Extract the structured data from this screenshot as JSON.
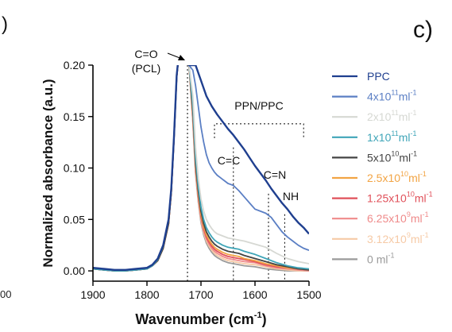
{
  "panel_label": "c)",
  "edge_fragments": {
    "top_left": ")",
    "bottom_left": "00"
  },
  "chart_data": {
    "type": "line",
    "xlabel": "Wavenumber (cm",
    "xlabel_sup": "-1",
    "xlabel_end": ")",
    "ylabel": "Normalized absorbance (a.u.)",
    "xlim": [
      1900,
      1500
    ],
    "ylim": [
      -0.01,
      0.2
    ],
    "x_ticks": [
      1900,
      1800,
      1700,
      1600,
      1500
    ],
    "x_tick_labels": [
      "1900",
      "1800",
      "1700",
      "1600",
      "1500"
    ],
    "y_ticks": [
      0.0,
      0.05,
      0.1,
      0.15,
      0.2
    ],
    "y_tick_labels": [
      "0.00",
      "0.05",
      "0.10",
      "0.15",
      "0.20"
    ],
    "grid": false,
    "legend_position": "right",
    "vlines": [
      1725,
      1640,
      1575,
      1545
    ],
    "annotations": [
      {
        "id": "co",
        "lines": [
          "C=O",
          "(PCL)"
        ]
      },
      {
        "id": "ppn",
        "lines": [
          "PPN/PPC"
        ]
      },
      {
        "id": "cc",
        "lines": [
          "C=C"
        ]
      },
      {
        "id": "cn",
        "lines": [
          "C=N"
        ]
      },
      {
        "id": "nh",
        "lines": [
          "NH"
        ]
      }
    ],
    "bracket": {
      "x_start": 1675,
      "x_end": 1510,
      "y": 0.143
    },
    "series": [
      {
        "name": "PPC",
        "base": "",
        "sup": "",
        "color": "#1f3f8f",
        "x": [
          1900,
          1880,
          1860,
          1840,
          1820,
          1800,
          1790,
          1780,
          1770,
          1760,
          1755,
          1750,
          1745,
          1742,
          1728,
          1722,
          1710,
          1700,
          1690,
          1680,
          1670,
          1660,
          1650,
          1640,
          1630,
          1620,
          1610,
          1600,
          1590,
          1580,
          1570,
          1560,
          1550,
          1540,
          1530,
          1520,
          1510,
          1500
        ],
        "y": [
          0.003,
          0.002,
          0.001,
          0.001,
          0.002,
          0.003,
          0.006,
          0.012,
          0.025,
          0.05,
          0.08,
          0.13,
          0.19,
          0.205,
          0.205,
          0.2,
          0.2,
          0.185,
          0.17,
          0.16,
          0.152,
          0.145,
          0.138,
          0.132,
          0.125,
          0.118,
          0.11,
          0.102,
          0.095,
          0.088,
          0.08,
          0.073,
          0.066,
          0.06,
          0.053,
          0.047,
          0.042,
          0.036
        ]
      },
      {
        "name": "4x10",
        "base": "4x10",
        "sup": "11",
        "unit": "ml",
        "unit_sup": "-1",
        "color": "#5b7fc4",
        "x": [
          1900,
          1880,
          1860,
          1840,
          1820,
          1800,
          1790,
          1780,
          1770,
          1760,
          1755,
          1750,
          1745,
          1742,
          1728,
          1722,
          1715,
          1710,
          1705,
          1700,
          1695,
          1690,
          1685,
          1680,
          1675,
          1670,
          1665,
          1660,
          1655,
          1650,
          1645,
          1640,
          1630,
          1620,
          1610,
          1600,
          1590,
          1580,
          1570,
          1560,
          1550,
          1540,
          1530,
          1520,
          1510,
          1500
        ],
        "y": [
          0.003,
          0.002,
          0.001,
          0.001,
          0.002,
          0.003,
          0.006,
          0.012,
          0.025,
          0.05,
          0.08,
          0.13,
          0.19,
          0.205,
          0.205,
          0.2,
          0.195,
          0.18,
          0.16,
          0.14,
          0.125,
          0.113,
          0.105,
          0.1,
          0.096,
          0.093,
          0.091,
          0.089,
          0.087,
          0.085,
          0.084,
          0.083,
          0.078,
          0.072,
          0.066,
          0.06,
          0.058,
          0.056,
          0.052,
          0.045,
          0.038,
          0.033,
          0.029,
          0.025,
          0.022,
          0.02
        ]
      },
      {
        "name": "2x10",
        "base": "2x10",
        "sup": "11",
        "unit": "ml",
        "unit_sup": "-1",
        "color": "#d6d8d3",
        "x": [
          1900,
          1880,
          1860,
          1840,
          1820,
          1800,
          1790,
          1780,
          1770,
          1760,
          1755,
          1750,
          1745,
          1742,
          1728,
          1722,
          1715,
          1710,
          1705,
          1700,
          1695,
          1690,
          1685,
          1680,
          1675,
          1670,
          1660,
          1650,
          1640,
          1630,
          1620,
          1600,
          1580,
          1560,
          1540,
          1520,
          1500
        ],
        "y": [
          0.003,
          0.002,
          0.001,
          0.001,
          0.002,
          0.003,
          0.006,
          0.012,
          0.025,
          0.05,
          0.08,
          0.13,
          0.19,
          0.205,
          0.205,
          0.2,
          0.17,
          0.12,
          0.09,
          0.07,
          0.058,
          0.05,
          0.045,
          0.041,
          0.038,
          0.036,
          0.034,
          0.032,
          0.031,
          0.03,
          0.029,
          0.026,
          0.023,
          0.017,
          0.012,
          0.009,
          0.007
        ]
      },
      {
        "name": "1x10",
        "base": "1x10",
        "sup": "11",
        "unit": "ml",
        "unit_sup": "-1",
        "color": "#3fa5b8",
        "x": [
          1900,
          1880,
          1860,
          1840,
          1820,
          1800,
          1790,
          1780,
          1770,
          1760,
          1755,
          1750,
          1745,
          1742,
          1728,
          1722,
          1715,
          1710,
          1705,
          1700,
          1695,
          1690,
          1685,
          1680,
          1675,
          1670,
          1660,
          1650,
          1640,
          1630,
          1620,
          1600,
          1580,
          1560,
          1540,
          1520,
          1500
        ],
        "y": [
          0.002,
          0.001,
          0.0,
          0.0,
          0.001,
          0.002,
          0.005,
          0.011,
          0.024,
          0.049,
          0.079,
          0.13,
          0.19,
          0.205,
          0.205,
          0.2,
          0.16,
          0.11,
          0.082,
          0.062,
          0.05,
          0.042,
          0.037,
          0.033,
          0.03,
          0.028,
          0.025,
          0.023,
          0.022,
          0.021,
          0.019,
          0.016,
          0.012,
          0.008,
          0.005,
          0.003,
          0.002
        ]
      },
      {
        "name": "5x10",
        "base": "5x10",
        "sup": "10",
        "unit": "ml",
        "unit_sup": "-1",
        "color": "#444444",
        "x": [
          1900,
          1880,
          1860,
          1840,
          1820,
          1800,
          1790,
          1780,
          1770,
          1760,
          1755,
          1750,
          1745,
          1742,
          1728,
          1722,
          1715,
          1710,
          1705,
          1700,
          1695,
          1690,
          1685,
          1680,
          1675,
          1670,
          1660,
          1650,
          1640,
          1630,
          1620,
          1600,
          1580,
          1560,
          1540,
          1520,
          1500
        ],
        "y": [
          0.002,
          0.001,
          0.0,
          0.0,
          0.001,
          0.002,
          0.005,
          0.01,
          0.022,
          0.046,
          0.076,
          0.128,
          0.188,
          0.204,
          0.204,
          0.2,
          0.155,
          0.105,
          0.078,
          0.058,
          0.046,
          0.038,
          0.033,
          0.029,
          0.026,
          0.024,
          0.021,
          0.019,
          0.018,
          0.017,
          0.015,
          0.012,
          0.009,
          0.006,
          0.004,
          0.002,
          0.001
        ]
      },
      {
        "name": "2.5x10",
        "base": "2.5x10",
        "sup": "10",
        "unit": "ml",
        "unit_sup": "-1",
        "color": "#f2a444",
        "x": [
          1900,
          1880,
          1860,
          1840,
          1820,
          1800,
          1790,
          1780,
          1770,
          1760,
          1755,
          1750,
          1745,
          1742,
          1728,
          1722,
          1715,
          1710,
          1705,
          1700,
          1695,
          1690,
          1685,
          1680,
          1675,
          1670,
          1660,
          1650,
          1640,
          1630,
          1620,
          1600,
          1580,
          1560,
          1540,
          1520,
          1500
        ],
        "y": [
          0.002,
          0.001,
          0.0,
          0.0,
          0.001,
          0.002,
          0.005,
          0.01,
          0.022,
          0.046,
          0.076,
          0.128,
          0.188,
          0.204,
          0.204,
          0.2,
          0.152,
          0.102,
          0.075,
          0.055,
          0.043,
          0.035,
          0.03,
          0.026,
          0.023,
          0.021,
          0.018,
          0.016,
          0.015,
          0.014,
          0.012,
          0.01,
          0.007,
          0.005,
          0.003,
          0.002,
          0.001
        ]
      },
      {
        "name": "1.25x10",
        "base": "1.25x10",
        "sup": "10",
        "unit": "ml",
        "unit_sup": "-1",
        "color": "#e0505a",
        "x": [
          1900,
          1880,
          1860,
          1840,
          1820,
          1800,
          1790,
          1780,
          1770,
          1760,
          1755,
          1750,
          1745,
          1742,
          1728,
          1722,
          1715,
          1710,
          1705,
          1700,
          1695,
          1690,
          1685,
          1680,
          1675,
          1670,
          1660,
          1650,
          1640,
          1630,
          1620,
          1600,
          1580,
          1560,
          1540,
          1520,
          1500
        ],
        "y": [
          0.002,
          0.001,
          0.0,
          0.0,
          0.001,
          0.002,
          0.005,
          0.01,
          0.022,
          0.046,
          0.076,
          0.128,
          0.188,
          0.204,
          0.204,
          0.2,
          0.15,
          0.1,
          0.073,
          0.053,
          0.041,
          0.033,
          0.028,
          0.024,
          0.021,
          0.019,
          0.016,
          0.014,
          0.013,
          0.012,
          0.011,
          0.009,
          0.006,
          0.004,
          0.003,
          0.002,
          0.001
        ]
      },
      {
        "name": "6.25x10",
        "base": "6.25x10",
        "sup": "9",
        "unit": "ml",
        "unit_sup": "-1",
        "color": "#ef8a8a",
        "x": [
          1900,
          1880,
          1860,
          1840,
          1820,
          1800,
          1790,
          1780,
          1770,
          1760,
          1755,
          1750,
          1745,
          1742,
          1728,
          1722,
          1715,
          1710,
          1705,
          1700,
          1695,
          1690,
          1685,
          1680,
          1675,
          1670,
          1660,
          1650,
          1640,
          1630,
          1620,
          1600,
          1580,
          1560,
          1540,
          1520,
          1500
        ],
        "y": [
          0.002,
          0.001,
          0.0,
          0.0,
          0.001,
          0.002,
          0.005,
          0.01,
          0.022,
          0.046,
          0.076,
          0.128,
          0.188,
          0.204,
          0.204,
          0.2,
          0.148,
          0.098,
          0.071,
          0.051,
          0.039,
          0.031,
          0.026,
          0.022,
          0.019,
          0.017,
          0.014,
          0.012,
          0.011,
          0.01,
          0.009,
          0.008,
          0.005,
          0.003,
          0.002,
          0.001,
          0.0
        ]
      },
      {
        "name": "3.12x10",
        "base": "3.12x10",
        "sup": "9",
        "unit": "ml",
        "unit_sup": "-1",
        "color": "#f6caa6",
        "x": [
          1900,
          1880,
          1860,
          1840,
          1820,
          1800,
          1790,
          1780,
          1770,
          1760,
          1755,
          1750,
          1745,
          1742,
          1728,
          1722,
          1715,
          1710,
          1705,
          1700,
          1695,
          1690,
          1685,
          1680,
          1675,
          1670,
          1660,
          1650,
          1640,
          1630,
          1620,
          1600,
          1580,
          1560,
          1540,
          1520,
          1500
        ],
        "y": [
          0.002,
          0.001,
          0.0,
          0.0,
          0.001,
          0.002,
          0.005,
          0.01,
          0.022,
          0.046,
          0.076,
          0.128,
          0.188,
          0.204,
          0.204,
          0.2,
          0.146,
          0.096,
          0.069,
          0.049,
          0.037,
          0.029,
          0.024,
          0.02,
          0.017,
          0.015,
          0.012,
          0.01,
          0.009,
          0.008,
          0.007,
          0.006,
          0.004,
          0.002,
          0.001,
          0.0,
          0.0
        ]
      },
      {
        "name": "0",
        "base": "0 ",
        "sup": "",
        "unit": "ml",
        "unit_sup": "-1",
        "color": "#9a9a9a",
        "x": [
          1900,
          1880,
          1860,
          1840,
          1820,
          1800,
          1790,
          1780,
          1770,
          1760,
          1755,
          1750,
          1745,
          1742,
          1728,
          1722,
          1715,
          1710,
          1705,
          1700,
          1695,
          1690,
          1685,
          1680,
          1675,
          1670,
          1660,
          1650,
          1640,
          1630,
          1620,
          1600,
          1580,
          1560,
          1540,
          1520,
          1500
        ],
        "y": [
          0.002,
          0.001,
          0.0,
          0.0,
          0.001,
          0.002,
          0.005,
          0.01,
          0.022,
          0.046,
          0.076,
          0.128,
          0.188,
          0.204,
          0.204,
          0.2,
          0.144,
          0.094,
          0.067,
          0.047,
          0.035,
          0.027,
          0.022,
          0.018,
          0.015,
          0.013,
          0.01,
          0.008,
          0.007,
          0.006,
          0.005,
          0.004,
          0.002,
          0.001,
          0.0,
          0.0,
          0.0
        ]
      }
    ]
  }
}
